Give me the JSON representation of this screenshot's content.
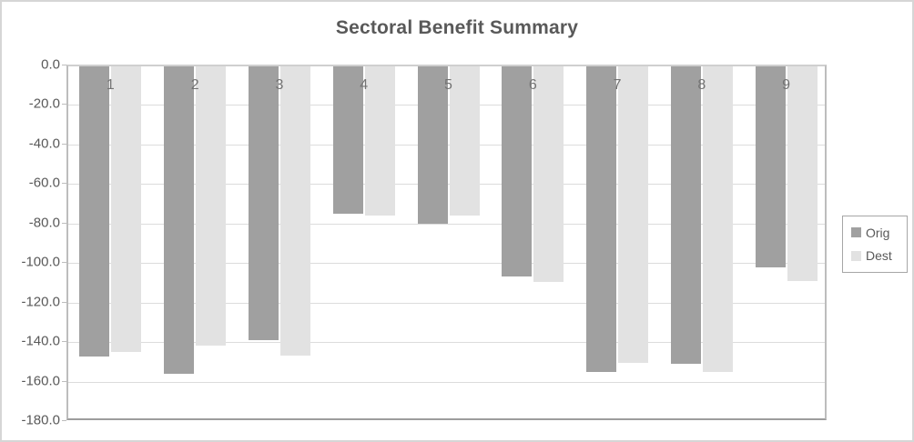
{
  "chart_data": {
    "type": "bar",
    "title": "Sectoral Benefit Summary",
    "orientation": "vertical",
    "categories": [
      "1",
      "2",
      "3",
      "4",
      "5",
      "6",
      "7",
      "8",
      "9"
    ],
    "series": [
      {
        "name": "Orig",
        "color": "#a0a0a0",
        "values": [
          -147.0,
          -155.5,
          -138.5,
          -74.5,
          -79.5,
          -106.5,
          -154.5,
          -150.5,
          -101.5
        ]
      },
      {
        "name": "Dest",
        "color": "#e2e2e2",
        "values": [
          -144.5,
          -141.5,
          -146.5,
          -75.5,
          -75.5,
          -109.0,
          -150.0,
          -154.5,
          -108.5
        ]
      }
    ],
    "ylim": [
      -180,
      0
    ],
    "y_tick_step": 20,
    "y_tick_labels": [
      "0.0",
      "-20.0",
      "-40.0",
      "-60.0",
      "-80.0",
      "-100.0",
      "-120.0",
      "-140.0",
      "-160.0",
      "-180.0"
    ],
    "grid": true,
    "legend": {
      "position": "right",
      "entries": [
        "Orig",
        "Dest"
      ]
    },
    "colors": {
      "title_text": "#595959",
      "axis_text": "#595959",
      "category_text": "#737373",
      "gridline": "#dcdcdc"
    }
  }
}
